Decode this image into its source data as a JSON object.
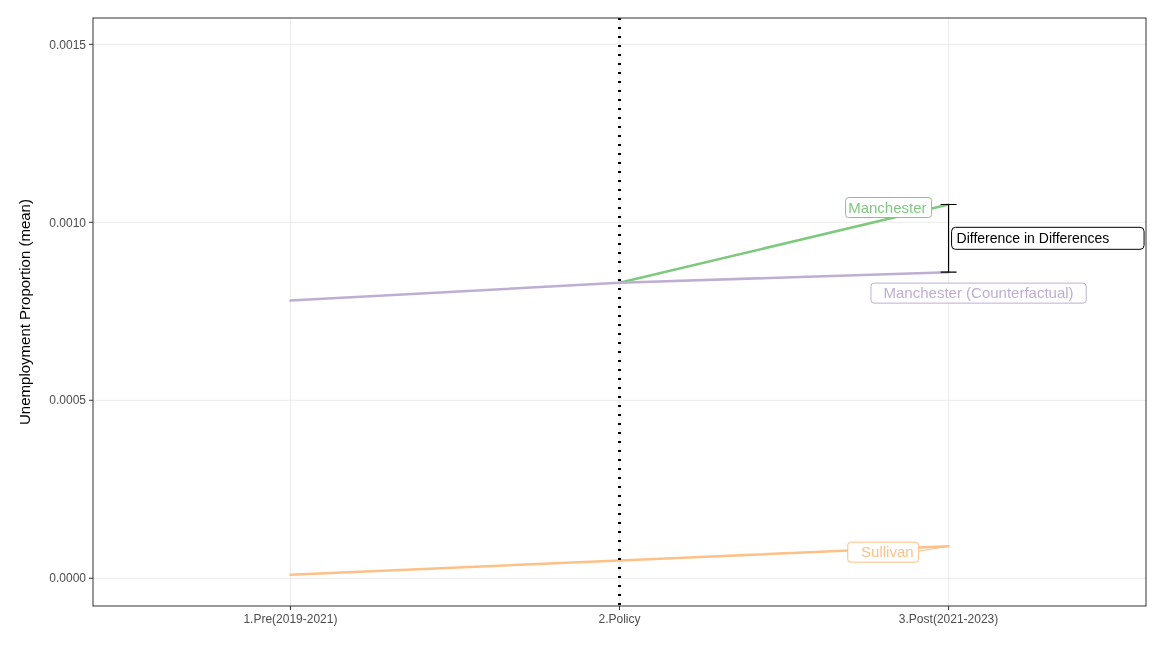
{
  "chart_data": {
    "type": "line",
    "ylabel": "Unemployment Proportion (mean)",
    "categories": [
      "1.Pre(2019-2021)",
      "2.Policy",
      "3.Post(2021-2023)"
    ],
    "series": [
      {
        "name": "Manchester",
        "color": "#7fc97f",
        "values": [
          null,
          0.00083,
          0.00105
        ]
      },
      {
        "name": "Manchester (Counterfactual)",
        "color": "#beaed4",
        "values": [
          0.00078,
          0.00083,
          0.00086
        ]
      },
      {
        "name": "Sullivan",
        "color": "#fdc086",
        "values": [
          1e-05,
          5e-05,
          9e-05
        ]
      }
    ],
    "ylim": [
      -7.8e-05,
      0.001574
    ],
    "yticks": [
      {
        "value": 0,
        "label": "0.0000"
      },
      {
        "value": 0.0005,
        "label": "0.0005"
      },
      {
        "value": 0.001,
        "label": "0.0010"
      },
      {
        "value": 0.0015,
        "label": "0.0015"
      }
    ],
    "grid": true,
    "marker": "none",
    "line_style": "solid",
    "ref_lines": [
      {
        "axis": "x",
        "value": "2.Policy",
        "color": "#000000",
        "line_style": "dotted"
      }
    ],
    "annotations": [
      "Difference in Differences"
    ]
  }
}
